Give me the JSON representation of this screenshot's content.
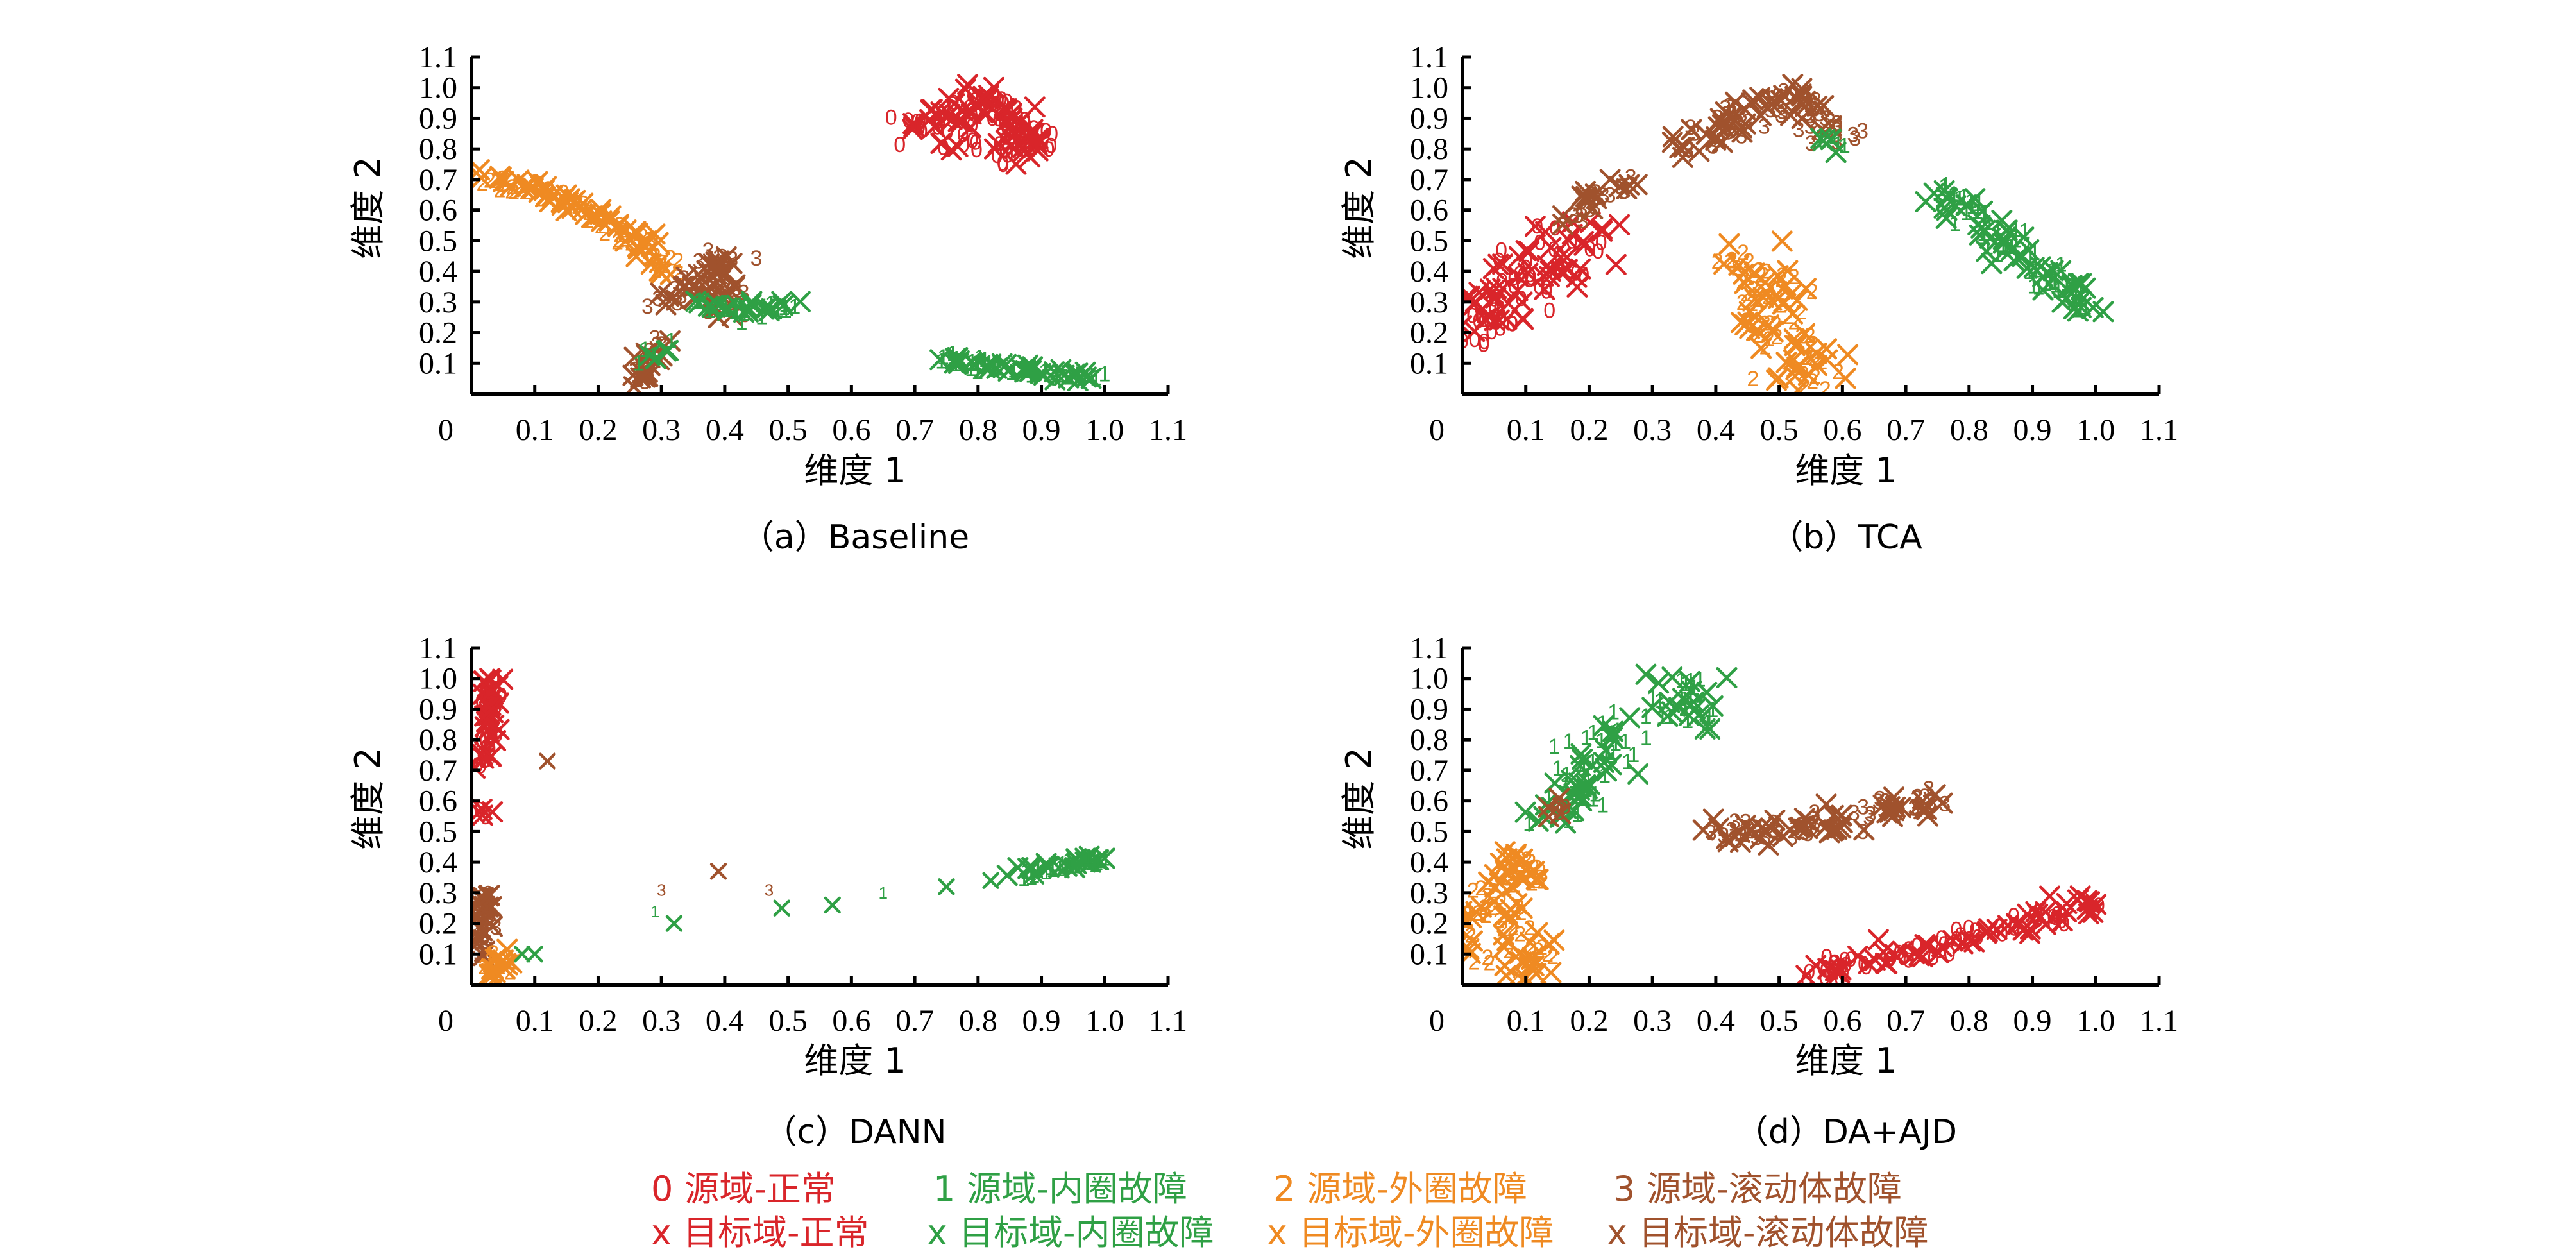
{
  "legend": [
    {
      "marker": "0",
      "label": "源域-正常",
      "color": "#d9252a"
    },
    {
      "marker": "1",
      "label": "源域-内圈故障",
      "color": "#2fa045"
    },
    {
      "marker": "2",
      "label": "源域-外圈故障",
      "color": "#ef8a22"
    },
    {
      "marker": "3",
      "label": "源域-滚动体故障",
      "color": "#a0522d"
    },
    {
      "marker": "x",
      "label": "目标域-正常",
      "color": "#d9252a"
    },
    {
      "marker": "x",
      "label": "目标域-内圈故障",
      "color": "#2fa045"
    },
    {
      "marker": "x",
      "label": "目标域-外圈故障",
      "color": "#ef8a22"
    },
    {
      "marker": "x",
      "label": "目标域-滚动体故障",
      "color": "#a0522d"
    }
  ],
  "chart_data": [
    {
      "type": "scatter",
      "caption": "（a）Baseline",
      "xlabel": "维度 1",
      "ylabel": "维度 2",
      "xlim": [
        0,
        1.1
      ],
      "ylim": [
        0,
        1.1
      ],
      "xticks": [
        "0",
        "0.1",
        "0.2",
        "0.3",
        "0.4",
        "0.5",
        "0.6",
        "0.7",
        "0.8",
        "0.9",
        "1.0",
        "1.1"
      ],
      "yticks": [
        "0.1",
        "0.2",
        "0.3",
        "0.4",
        "0.5",
        "0.6",
        "0.7",
        "0.8",
        "0.9",
        "1.0",
        "1.1"
      ],
      "clusters": [
        {
          "class": 0,
          "polyline": [
            [
              0.7,
              0.85
            ],
            [
              0.75,
              0.9
            ],
            [
              0.8,
              0.97
            ],
            [
              0.85,
              0.9
            ],
            [
              0.88,
              0.82
            ],
            [
              0.82,
              0.78
            ],
            [
              0.76,
              0.82
            ]
          ],
          "spread": 0.025,
          "n": 130
        },
        {
          "class": 2,
          "polyline": [
            [
              0.0,
              0.71
            ],
            [
              0.1,
              0.67
            ],
            [
              0.18,
              0.6
            ],
            [
              0.25,
              0.52
            ],
            [
              0.3,
              0.43
            ],
            [
              0.32,
              0.38
            ]
          ],
          "spread": 0.015,
          "n": 120
        },
        {
          "class": 3,
          "polyline": [
            [
              0.32,
              0.3
            ],
            [
              0.36,
              0.38
            ],
            [
              0.4,
              0.46
            ],
            [
              0.4,
              0.28
            ],
            [
              0.36,
              0.35
            ]
          ],
          "spread": 0.02,
          "n": 70
        },
        {
          "class": 3,
          "polyline": [
            [
              0.26,
              0.03
            ],
            [
              0.28,
              0.12
            ],
            [
              0.31,
              0.17
            ]
          ],
          "spread": 0.012,
          "n": 30
        },
        {
          "class": 1,
          "polyline": [
            [
              0.27,
              0.1
            ],
            [
              0.3,
              0.16
            ]
          ],
          "spread": 0.01,
          "n": 8
        },
        {
          "class": 1,
          "polyline": [
            [
              0.36,
              0.3
            ],
            [
              0.42,
              0.28
            ],
            [
              0.48,
              0.28
            ],
            [
              0.5,
              0.29
            ]
          ],
          "spread": 0.012,
          "n": 40
        },
        {
          "class": 1,
          "polyline": [
            [
              0.74,
              0.12
            ],
            [
              0.8,
              0.1
            ],
            [
              0.87,
              0.08
            ],
            [
              0.94,
              0.06
            ],
            [
              1.0,
              0.05
            ]
          ],
          "spread": 0.012,
          "n": 70
        }
      ]
    },
    {
      "type": "scatter",
      "caption": "（b）TCA",
      "xlabel": "维度 1",
      "ylabel": "维度 2",
      "xlim": [
        0,
        1.1
      ],
      "ylim": [
        0,
        1.1
      ],
      "xticks": [
        "0",
        "0.1",
        "0.2",
        "0.3",
        "0.4",
        "0.5",
        "0.6",
        "0.7",
        "0.8",
        "0.9",
        "1.0",
        "1.1"
      ],
      "yticks": [
        "0.1",
        "0.2",
        "0.3",
        "0.4",
        "0.5",
        "0.6",
        "0.7",
        "0.8",
        "0.9",
        "1.0",
        "1.1"
      ],
      "clusters": [
        {
          "class": 0,
          "polyline": [
            [
              0.0,
              0.18
            ],
            [
              0.05,
              0.28
            ],
            [
              0.1,
              0.36
            ],
            [
              0.14,
              0.45
            ],
            [
              0.18,
              0.55
            ]
          ],
          "spread": 0.035,
          "n": 120
        },
        {
          "class": 3,
          "polyline": [
            [
              0.17,
              0.57
            ],
            [
              0.22,
              0.66
            ],
            [
              0.28,
              0.71
            ]
          ],
          "spread": 0.012,
          "n": 30
        },
        {
          "class": 3,
          "polyline": [
            [
              0.36,
              0.8
            ],
            [
              0.42,
              0.88
            ],
            [
              0.48,
              0.93
            ],
            [
              0.53,
              0.98
            ],
            [
              0.56,
              0.9
            ],
            [
              0.6,
              0.83
            ]
          ],
          "spread": 0.025,
          "n": 90
        },
        {
          "class": 1,
          "polyline": [
            [
              0.56,
              0.85
            ],
            [
              0.59,
              0.8
            ]
          ],
          "spread": 0.012,
          "n": 10
        },
        {
          "class": 2,
          "polyline": [
            [
              0.43,
              0.44
            ],
            [
              0.5,
              0.35
            ],
            [
              0.47,
              0.25
            ],
            [
              0.52,
              0.15
            ],
            [
              0.56,
              0.08
            ],
            [
              0.53,
              0.02
            ]
          ],
          "spread": 0.03,
          "n": 110
        },
        {
          "class": 1,
          "polyline": [
            [
              0.76,
              0.66
            ],
            [
              0.82,
              0.58
            ],
            [
              0.88,
              0.47
            ],
            [
              0.93,
              0.37
            ],
            [
              0.99,
              0.26
            ]
          ],
          "spread": 0.02,
          "n": 110
        }
      ]
    },
    {
      "type": "scatter",
      "caption": "（c）DANN",
      "xlabel": "维度 1",
      "ylabel": "维度 2",
      "xlim": [
        0,
        1.1
      ],
      "ylim": [
        0,
        1.1
      ],
      "xticks": [
        "0",
        "0.1",
        "0.2",
        "0.3",
        "0.4",
        "0.5",
        "0.6",
        "0.7",
        "0.8",
        "0.9",
        "1.0",
        "1.1"
      ],
      "yticks": [
        "0.1",
        "0.2",
        "0.3",
        "0.4",
        "0.5",
        "0.6",
        "0.7",
        "0.8",
        "0.9",
        "1.0",
        "1.1"
      ],
      "clusters": [
        {
          "class": 0,
          "polyline": [
            [
              0.02,
              0.7
            ],
            [
              0.03,
              0.85
            ],
            [
              0.03,
              1.0
            ]
          ],
          "spread": 0.008,
          "n": 70
        },
        {
          "class": 0,
          "polyline": [
            [
              0.02,
              0.55
            ],
            [
              0.02,
              0.58
            ]
          ],
          "spread": 0.005,
          "n": 6
        },
        {
          "class": 3,
          "polyline": [
            [
              0.01,
              0.1
            ],
            [
              0.02,
              0.2
            ],
            [
              0.02,
              0.3
            ]
          ],
          "spread": 0.008,
          "n": 40
        },
        {
          "class": 2,
          "polyline": [
            [
              0.03,
              0.02
            ],
            [
              0.05,
              0.06
            ],
            [
              0.04,
              0.1
            ]
          ],
          "spread": 0.01,
          "n": 30
        },
        {
          "class": 1,
          "polyline": [
            [
              0.86,
              0.36
            ],
            [
              0.92,
              0.38
            ],
            [
              1.0,
              0.41
            ]
          ],
          "spread": 0.01,
          "n": 45
        }
      ],
      "points": [
        {
          "class": 3,
          "domain": "target",
          "x": 0.12,
          "y": 0.73
        },
        {
          "class": 1,
          "domain": "target",
          "x": 0.08,
          "y": 0.1
        },
        {
          "class": 1,
          "domain": "target",
          "x": 0.1,
          "y": 0.1
        },
        {
          "class": 3,
          "domain": "source",
          "x": 0.3,
          "y": 0.31
        },
        {
          "class": 1,
          "domain": "source",
          "x": 0.29,
          "y": 0.24
        },
        {
          "class": 1,
          "domain": "target",
          "x": 0.32,
          "y": 0.2
        },
        {
          "class": 3,
          "domain": "target",
          "x": 0.39,
          "y": 0.37
        },
        {
          "class": 3,
          "domain": "source",
          "x": 0.47,
          "y": 0.31
        },
        {
          "class": 1,
          "domain": "target",
          "x": 0.49,
          "y": 0.25
        },
        {
          "class": 1,
          "domain": "target",
          "x": 0.57,
          "y": 0.26
        },
        {
          "class": 1,
          "domain": "source",
          "x": 0.65,
          "y": 0.3
        },
        {
          "class": 1,
          "domain": "target",
          "x": 0.75,
          "y": 0.32
        },
        {
          "class": 1,
          "domain": "target",
          "x": 0.82,
          "y": 0.34
        }
      ]
    },
    {
      "type": "scatter",
      "caption": "（d）DA+AJD",
      "xlabel": "维度 1",
      "ylabel": "维度 2",
      "xlim": [
        0,
        1.1
      ],
      "ylim": [
        0,
        1.1
      ],
      "xticks": [
        "0",
        "0.1",
        "0.2",
        "0.3",
        "0.4",
        "0.5",
        "0.6",
        "0.7",
        "0.8",
        "0.9",
        "1.0",
        "1.1"
      ],
      "yticks": [
        "0.1",
        "0.2",
        "0.3",
        "0.4",
        "0.5",
        "0.6",
        "0.7",
        "0.8",
        "0.9",
        "1.0",
        "1.1"
      ],
      "clusters": [
        {
          "class": 1,
          "polyline": [
            [
              0.15,
              0.55
            ],
            [
              0.2,
              0.72
            ],
            [
              0.25,
              0.85
            ],
            [
              0.3,
              0.92
            ],
            [
              0.35,
              0.98
            ],
            [
              0.38,
              0.85
            ]
          ],
          "spread": 0.03,
          "n": 110
        },
        {
          "class": 3,
          "polyline": [
            [
              0.14,
              0.55
            ],
            [
              0.16,
              0.6
            ]
          ],
          "spread": 0.008,
          "n": 8
        },
        {
          "class": 2,
          "polyline": [
            [
              0.0,
              0.2
            ],
            [
              0.05,
              0.3
            ],
            [
              0.1,
              0.42
            ],
            [
              0.08,
              0.2
            ],
            [
              0.05,
              0.08
            ],
            [
              0.1,
              0.03
            ],
            [
              0.12,
              0.15
            ]
          ],
          "spread": 0.025,
          "n": 110
        },
        {
          "class": 3,
          "polyline": [
            [
              0.4,
              0.5
            ],
            [
              0.5,
              0.5
            ],
            [
              0.6,
              0.54
            ],
            [
              0.68,
              0.58
            ],
            [
              0.75,
              0.61
            ]
          ],
          "spread": 0.02,
          "n": 100
        },
        {
          "class": 0,
          "polyline": [
            [
              0.54,
              0.03
            ],
            [
              0.64,
              0.08
            ],
            [
              0.74,
              0.12
            ],
            [
              0.84,
              0.18
            ],
            [
              0.92,
              0.22
            ],
            [
              1.0,
              0.28
            ]
          ],
          "spread": 0.02,
          "n": 110
        }
      ]
    }
  ]
}
